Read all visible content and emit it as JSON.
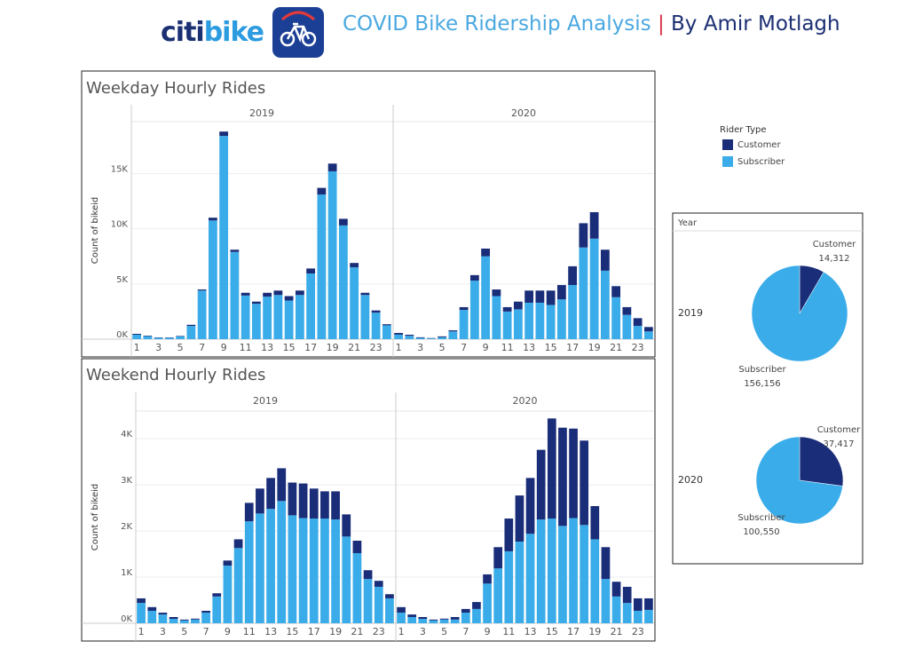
{
  "header": {
    "logo_a": "citi",
    "logo_b": "bike",
    "title": "COVID Bike Ridership Analysis",
    "separator": "|",
    "author": "By Amir Motlagh"
  },
  "chart_data": [
    {
      "type": "stacked-bar",
      "title": "Weekday Hourly Rides",
      "y_label": "Count of bikeid",
      "legend_title": "Rider Type",
      "panels": [
        "2019",
        "2020"
      ],
      "categories": [
        1,
        null,
        3,
        null,
        5,
        null,
        7,
        null,
        9,
        null,
        11,
        null,
        13,
        null,
        15,
        null,
        17,
        null,
        19,
        null,
        21,
        null,
        23,
        null
      ],
      "ylim": [
        0,
        19700
      ],
      "yticks": [
        {
          "value": 0,
          "label": "0K"
        },
        {
          "value": 5000,
          "label": "5K"
        },
        {
          "value": 10000,
          "label": "10K"
        },
        {
          "value": 15000,
          "label": "15K"
        }
      ],
      "grid": true,
      "series": [
        {
          "name": "Customer",
          "color": "#1a2d78",
          "values": [
            [
              80,
              50,
              30,
              30,
              40,
              100,
              100,
              250,
              400,
              200,
              250,
              200,
              350,
              400,
              400,
              400,
              450,
              600,
              700,
              600,
              400,
              200,
              200,
              100
            ],
            [
              150,
              100,
              50,
              30,
              80,
              100,
              250,
              500,
              700,
              600,
              400,
              700,
              1100,
              1100,
              1300,
              1300,
              1700,
              2200,
              2400,
              1900,
              1000,
              700,
              700,
              400
            ]
          ]
        },
        {
          "name": "Subscriber",
          "color": "#3aace9",
          "values": [
            [
              400,
              270,
              130,
              120,
              260,
              1200,
              4400,
              10750,
              18400,
              7900,
              3950,
              3200,
              3850,
              4000,
              3500,
              4000,
              5950,
              13100,
              15200,
              10300,
              6500,
              4000,
              2400,
              1250
            ],
            [
              410,
              300,
              120,
              70,
              170,
              700,
              2650,
              5300,
              7500,
              3900,
              2500,
              2700,
              3300,
              3300,
              3100,
              3600,
              4900,
              8300,
              9100,
              6200,
              3800,
              2200,
              1200,
              700
            ]
          ]
        }
      ]
    },
    {
      "type": "stacked-bar",
      "title": "Weekend Hourly Rides",
      "y_label": "Count of bikeid",
      "panels": [
        "2019",
        "2020"
      ],
      "categories": [
        1,
        null,
        3,
        null,
        5,
        null,
        7,
        null,
        9,
        null,
        11,
        null,
        13,
        null,
        15,
        null,
        17,
        null,
        19,
        null,
        21,
        null,
        23,
        null
      ],
      "ylim": [
        0,
        4600
      ],
      "yticks": [
        {
          "value": 0,
          "label": "0K"
        },
        {
          "value": 1000,
          "label": "1K"
        },
        {
          "value": 2000,
          "label": "2K"
        },
        {
          "value": 3000,
          "label": "3K"
        },
        {
          "value": 4000,
          "label": "4K"
        }
      ],
      "grid": true,
      "series": [
        {
          "color": "#1a2d78",
          "values": [
            [
              100,
              80,
              40,
              40,
              20,
              20,
              40,
              70,
              110,
              190,
              400,
              540,
              670,
              710,
              710,
              750,
              650,
              590,
              610,
              480,
              270,
              190,
              130,
              90
            ],
            [
              120,
              55,
              40,
              20,
              20,
              55,
              80,
              150,
              200,
              460,
              710,
              1000,
              1210,
              1510,
              2170,
              2130,
              1940,
              1830,
              720,
              690,
              320,
              350,
              270,
              250
            ]
          ]
        },
        {
          "color": "#3aace9",
          "values": [
            [
              440,
              270,
              190,
              95,
              60,
              80,
              230,
              580,
              1250,
              1630,
              2210,
              2380,
              2480,
              2650,
              2340,
              2280,
              2270,
              2270,
              2250,
              1880,
              1520,
              960,
              790,
              540
            ],
            [
              230,
              135,
              95,
              60,
              80,
              80,
              230,
              310,
              860,
              1190,
              1560,
              1770,
              1940,
              2250,
              2270,
              2110,
              2280,
              2130,
              1820,
              960,
              580,
              440,
              270,
              290
            ]
          ]
        }
      ]
    },
    {
      "type": "pie",
      "title": "Year",
      "categories": [
        "Customer",
        "Subscriber"
      ],
      "colors": [
        "#1a2d78",
        "#3aace9"
      ],
      "rows": [
        {
          "label": "2019",
          "values": [
            14312,
            156156
          ],
          "value_labels": [
            "14,312",
            "156,156"
          ]
        },
        {
          "label": "2020",
          "values": [
            37417,
            100550
          ],
          "value_labels": [
            "37,417",
            "100,550"
          ]
        }
      ]
    }
  ]
}
